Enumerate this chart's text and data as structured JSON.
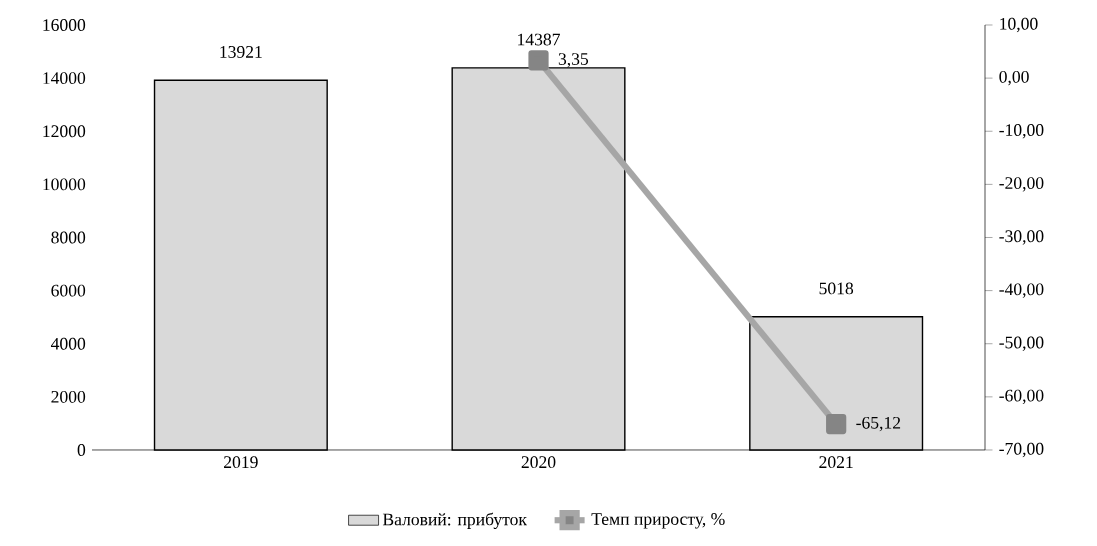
{
  "chart_data": {
    "type": "bar",
    "categories": [
      "2019",
      "2020",
      "2021"
    ],
    "series": [
      {
        "name": "Валовий: прибуток",
        "color": "#d9d9d9",
        "values": [
          13921,
          14387,
          5018
        ],
        "value_labels": [
          "13921",
          "14387",
          "5018"
        ]
      },
      {
        "name": "Темп приросту, %",
        "type": "line",
        "axis": "y2",
        "color": "#a6a6a6",
        "values": [
          null,
          3.35,
          -65.12
        ],
        "value_labels": [
          null,
          "3,35",
          "-65,12"
        ]
      }
    ],
    "ylim": [
      0,
      16000
    ],
    "yticks": [
      0,
      2000,
      4000,
      6000,
      8000,
      10000,
      12000,
      14000,
      16000
    ],
    "y2lim": [
      -70,
      10
    ],
    "y2ticks": [
      {
        "value": 10,
        "label": "10,00"
      },
      {
        "value": 0,
        "label": "0,00"
      },
      {
        "value": -10,
        "label": "-10,00"
      },
      {
        "value": -20,
        "label": "-20,00"
      },
      {
        "value": -30,
        "label": "-30,00"
      },
      {
        "value": -40,
        "label": "-40,00"
      },
      {
        "value": -50,
        "label": "-50,00"
      },
      {
        "value": -60,
        "label": "-60,00"
      },
      {
        "value": -70,
        "label": "-70,00"
      }
    ],
    "legend": "bottom",
    "marker": "square",
    "line_style": "solid"
  }
}
